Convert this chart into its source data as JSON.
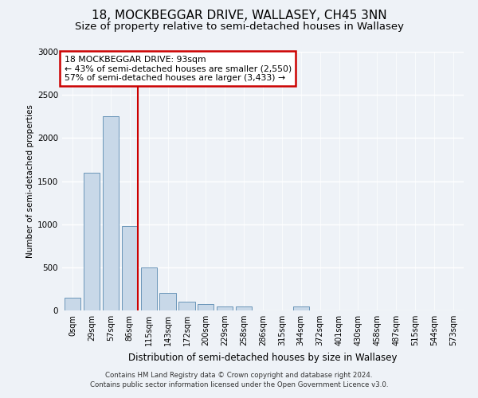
{
  "title": "18, MOCKBEGGAR DRIVE, WALLASEY, CH45 3NN",
  "subtitle": "Size of property relative to semi-detached houses in Wallasey",
  "xlabel": "Distribution of semi-detached houses by size in Wallasey",
  "ylabel": "Number of semi-detached properties",
  "footnote1": "Contains HM Land Registry data © Crown copyright and database right 2024.",
  "footnote2": "Contains public sector information licensed under the Open Government Licence v3.0.",
  "bar_labels": [
    "0sqm",
    "29sqm",
    "57sqm",
    "86sqm",
    "115sqm",
    "143sqm",
    "172sqm",
    "200sqm",
    "229sqm",
    "258sqm",
    "286sqm",
    "315sqm",
    "344sqm",
    "372sqm",
    "401sqm",
    "430sqm",
    "458sqm",
    "487sqm",
    "515sqm",
    "544sqm",
    "573sqm"
  ],
  "bar_values": [
    150,
    1600,
    2250,
    980,
    500,
    200,
    100,
    70,
    50,
    50,
    0,
    0,
    50,
    0,
    0,
    0,
    0,
    0,
    0,
    0,
    0
  ],
  "bar_color": "#c8d8e8",
  "bar_edgecolor": "#5a8ab0",
  "vline_bin_index": 3,
  "annotation_title": "18 MOCKBEGGAR DRIVE: 93sqm",
  "annotation_line1": "← 43% of semi-detached houses are smaller (2,550)",
  "annotation_line2": "57% of semi-detached houses are larger (3,433) →",
  "annotation_box_color": "#ffffff",
  "annotation_border_color": "#cc0000",
  "vline_color": "#cc0000",
  "ylim": [
    0,
    3000
  ],
  "yticks": [
    0,
    500,
    1000,
    1500,
    2000,
    2500,
    3000
  ],
  "bg_color": "#eef2f7",
  "title_fontsize": 11,
  "subtitle_fontsize": 9.5
}
